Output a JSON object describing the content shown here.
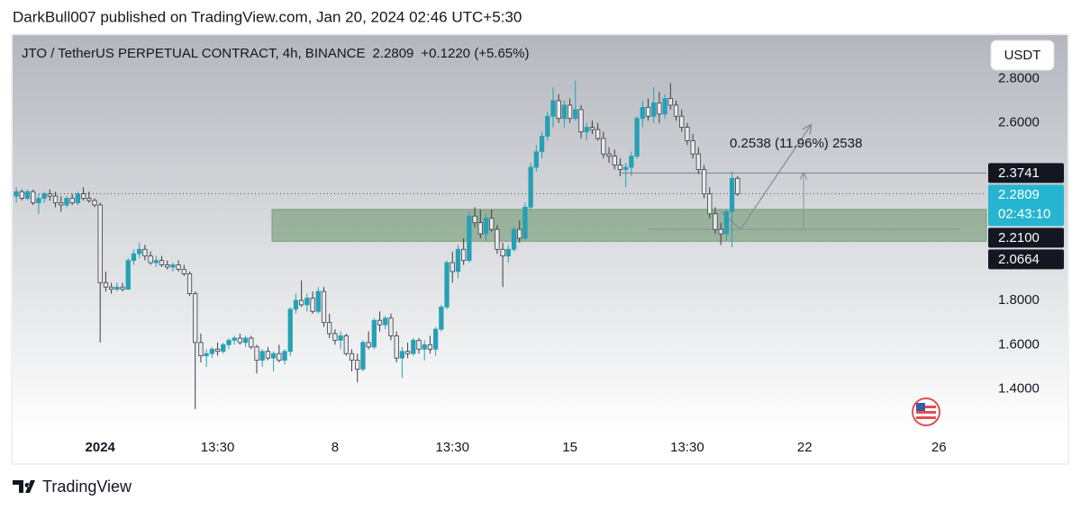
{
  "header": {
    "publisher": "DarkBull007 published on TradingView.com, Jan 20, 2024 02:46 UTC+5:30"
  },
  "footer": {
    "brand": "TradingView"
  },
  "chart_data": {
    "type": "candlestick",
    "title": "JTO / TetherUS PERPETUAL CONTRACT, 4h, BINANCE",
    "last": 2.2809,
    "change_label": "+0.1220 (+5.65%)",
    "countdown": "02:43:10",
    "currency": "USDT",
    "up_color": "#26a0b5",
    "down_color": "#e9eaee",
    "ylim": [
      1.2,
      3.0
    ],
    "yticks": [
      {
        "value": 1.4,
        "label": "1.4000"
      },
      {
        "value": 1.6,
        "label": "1.6000"
      },
      {
        "value": 1.8,
        "label": "1.8000"
      },
      {
        "value": 2.6,
        "label": "2.6000"
      },
      {
        "value": 2.8,
        "label": "2.8000"
      }
    ],
    "grid": false,
    "resistance": 2.3741,
    "zone": [
      {
        "value": 2.21,
        "label": "2.2100"
      },
      2.0664
    ],
    "measure": {
      "label": "0.2538 (11.96%) 2538",
      "from": 2.1203,
      "to": 2.3741,
      "projection": 2.59
    },
    "categories": [
      null,
      null,
      null,
      null,
      null,
      null,
      null,
      null,
      null,
      null,
      null,
      null,
      null,
      null,
      null,
      "2024",
      null,
      null,
      null,
      null,
      null,
      null,
      null,
      null,
      null,
      null,
      null,
      null,
      null,
      null,
      null,
      null,
      null,
      null,
      null,
      null,
      "13:30",
      null,
      null,
      null,
      null,
      null,
      null,
      null,
      null,
      null,
      null,
      null,
      null,
      null,
      null,
      null,
      null,
      null,
      null,
      null,
      null,
      "8",
      null,
      null,
      null,
      null,
      null,
      null,
      null,
      null,
      null,
      null,
      null,
      null,
      null,
      null,
      null,
      null,
      null,
      null,
      null,
      null,
      "13:30",
      null,
      null,
      null,
      null,
      null,
      null,
      null,
      null,
      null,
      null,
      null,
      null,
      null,
      null,
      null,
      null,
      null,
      null,
      null,
      null,
      "15",
      null,
      null,
      null,
      null,
      null,
      null,
      null,
      null,
      null,
      null,
      null,
      null,
      null,
      null,
      null,
      null,
      null,
      null,
      null,
      null,
      "13:30",
      null,
      null,
      null,
      null,
      null,
      null,
      null,
      null,
      null,
      null,
      null,
      null,
      null,
      null,
      null,
      null,
      null,
      null,
      null,
      null,
      "22",
      null,
      null,
      null,
      null,
      null,
      null,
      null,
      null,
      null,
      null,
      null,
      null,
      null,
      null,
      null,
      null,
      null,
      null,
      null,
      null,
      null,
      null,
      null,
      "26",
      null,
      null,
      null,
      null,
      null,
      null,
      null,
      null
    ],
    "ohlc": [
      [
        2.27,
        2.31,
        2.24,
        2.29
      ],
      [
        2.29,
        2.3,
        2.25,
        2.26
      ],
      [
        2.26,
        2.3,
        2.25,
        2.29
      ],
      [
        2.29,
        2.3,
        2.23,
        2.24
      ],
      [
        2.24,
        2.28,
        2.19,
        2.26
      ],
      [
        2.26,
        2.29,
        2.24,
        2.28
      ],
      [
        2.28,
        2.3,
        2.25,
        2.27
      ],
      [
        2.27,
        2.29,
        2.22,
        2.24
      ],
      [
        2.24,
        2.27,
        2.2,
        2.23
      ],
      [
        2.23,
        2.27,
        2.22,
        2.26
      ],
      [
        2.26,
        2.28,
        2.23,
        2.24
      ],
      [
        2.24,
        2.29,
        2.23,
        2.28
      ],
      [
        2.28,
        2.31,
        2.25,
        2.26
      ],
      [
        2.26,
        2.29,
        2.24,
        2.25
      ],
      [
        2.25,
        2.26,
        2.22,
        2.23
      ],
      [
        2.23,
        2.24,
        1.61,
        1.88
      ],
      [
        1.88,
        1.93,
        1.84,
        1.86
      ],
      [
        1.86,
        1.88,
        1.83,
        1.85
      ],
      [
        1.85,
        1.88,
        1.84,
        1.86
      ],
      [
        1.86,
        1.88,
        1.84,
        1.85
      ],
      [
        1.85,
        1.99,
        1.85,
        1.98
      ],
      [
        1.98,
        2.03,
        1.96,
        2.01
      ],
      [
        2.01,
        2.06,
        1.99,
        2.03
      ],
      [
        2.03,
        2.05,
        1.98,
        2.0
      ],
      [
        2.0,
        2.02,
        1.96,
        1.97
      ],
      [
        1.97,
        2.0,
        1.95,
        1.98
      ],
      [
        1.98,
        2.0,
        1.95,
        1.96
      ],
      [
        1.96,
        1.98,
        1.94,
        1.95
      ],
      [
        1.95,
        1.97,
        1.93,
        1.96
      ],
      [
        1.96,
        1.98,
        1.93,
        1.94
      ],
      [
        1.94,
        1.96,
        1.91,
        1.92
      ],
      [
        1.92,
        1.93,
        1.82,
        1.83
      ],
      [
        1.83,
        1.84,
        1.31,
        1.61
      ],
      [
        1.61,
        1.65,
        1.52,
        1.55
      ],
      [
        1.55,
        1.58,
        1.5,
        1.56
      ],
      [
        1.56,
        1.59,
        1.54,
        1.58
      ],
      [
        1.58,
        1.61,
        1.55,
        1.57
      ],
      [
        1.57,
        1.61,
        1.56,
        1.6
      ],
      [
        1.6,
        1.63,
        1.58,
        1.62
      ],
      [
        1.62,
        1.64,
        1.6,
        1.63
      ],
      [
        1.63,
        1.65,
        1.6,
        1.61
      ],
      [
        1.61,
        1.64,
        1.59,
        1.63
      ],
      [
        1.63,
        1.64,
        1.58,
        1.59
      ],
      [
        1.59,
        1.6,
        1.47,
        1.53
      ],
      [
        1.53,
        1.58,
        1.5,
        1.57
      ],
      [
        1.57,
        1.59,
        1.53,
        1.54
      ],
      [
        1.54,
        1.57,
        1.48,
        1.56
      ],
      [
        1.56,
        1.6,
        1.52,
        1.53
      ],
      [
        1.53,
        1.58,
        1.51,
        1.57
      ],
      [
        1.57,
        1.77,
        1.55,
        1.76
      ],
      [
        1.76,
        1.83,
        1.74,
        1.8
      ],
      [
        1.8,
        1.89,
        1.77,
        1.78
      ],
      [
        1.78,
        1.83,
        1.75,
        1.81
      ],
      [
        1.81,
        1.84,
        1.74,
        1.75
      ],
      [
        1.75,
        1.86,
        1.74,
        1.84
      ],
      [
        1.84,
        1.86,
        1.68,
        1.7
      ],
      [
        1.7,
        1.74,
        1.63,
        1.65
      ],
      [
        1.65,
        1.67,
        1.6,
        1.62
      ],
      [
        1.62,
        1.66,
        1.58,
        1.64
      ],
      [
        1.64,
        1.65,
        1.55,
        1.56
      ],
      [
        1.56,
        1.58,
        1.48,
        1.53
      ],
      [
        1.53,
        1.56,
        1.43,
        1.49
      ],
      [
        1.49,
        1.62,
        1.48,
        1.61
      ],
      [
        1.61,
        1.66,
        1.58,
        1.59
      ],
      [
        1.59,
        1.72,
        1.58,
        1.71
      ],
      [
        1.71,
        1.75,
        1.66,
        1.69
      ],
      [
        1.69,
        1.73,
        1.67,
        1.72
      ],
      [
        1.72,
        1.74,
        1.62,
        1.64
      ],
      [
        1.64,
        1.66,
        1.52,
        1.54
      ],
      [
        1.54,
        1.59,
        1.45,
        1.57
      ],
      [
        1.57,
        1.61,
        1.54,
        1.56
      ],
      [
        1.56,
        1.63,
        1.55,
        1.62
      ],
      [
        1.62,
        1.63,
        1.56,
        1.58
      ],
      [
        1.58,
        1.62,
        1.53,
        1.6
      ],
      [
        1.6,
        1.64,
        1.56,
        1.58
      ],
      [
        1.58,
        1.68,
        1.55,
        1.67
      ],
      [
        1.67,
        1.78,
        1.66,
        1.77
      ],
      [
        1.77,
        1.98,
        1.76,
        1.97
      ],
      [
        1.97,
        2.02,
        1.88,
        1.93
      ],
      [
        1.93,
        2.05,
        1.9,
        2.03
      ],
      [
        2.03,
        2.08,
        1.96,
        1.98
      ],
      [
        1.98,
        2.2,
        1.97,
        2.18
      ],
      [
        2.18,
        2.22,
        2.13,
        2.15
      ],
      [
        2.15,
        2.21,
        2.08,
        2.1
      ],
      [
        2.1,
        2.19,
        2.07,
        2.17
      ],
      [
        2.17,
        2.21,
        2.11,
        2.12
      ],
      [
        2.12,
        2.14,
        2.01,
        2.03
      ],
      [
        2.03,
        2.06,
        1.86,
        2.0
      ],
      [
        2.0,
        2.05,
        1.97,
        2.03
      ],
      [
        2.03,
        2.13,
        2.02,
        2.12
      ],
      [
        2.12,
        2.16,
        2.06,
        2.08
      ],
      [
        2.08,
        2.24,
        2.07,
        2.22
      ],
      [
        2.22,
        2.42,
        2.21,
        2.4
      ],
      [
        2.4,
        2.5,
        2.38,
        2.47
      ],
      [
        2.47,
        2.56,
        2.44,
        2.54
      ],
      [
        2.54,
        2.65,
        2.52,
        2.63
      ],
      [
        2.63,
        2.76,
        2.58,
        2.7
      ],
      [
        2.7,
        2.73,
        2.6,
        2.62
      ],
      [
        2.62,
        2.7,
        2.58,
        2.68
      ],
      [
        2.68,
        2.71,
        2.6,
        2.62
      ],
      [
        2.62,
        2.79,
        2.61,
        2.66
      ],
      [
        2.66,
        2.68,
        2.53,
        2.56
      ],
      [
        2.56,
        2.6,
        2.52,
        2.58
      ],
      [
        2.58,
        2.61,
        2.55,
        2.57
      ],
      [
        2.57,
        2.6,
        2.52,
        2.53
      ],
      [
        2.53,
        2.56,
        2.44,
        2.46
      ],
      [
        2.46,
        2.49,
        2.42,
        2.45
      ],
      [
        2.45,
        2.48,
        2.39,
        2.41
      ],
      [
        2.41,
        2.44,
        2.36,
        2.39
      ],
      [
        2.39,
        2.42,
        2.31,
        2.4
      ],
      [
        2.4,
        2.47,
        2.36,
        2.45
      ],
      [
        2.45,
        2.63,
        2.44,
        2.62
      ],
      [
        2.62,
        2.7,
        2.58,
        2.67
      ],
      [
        2.67,
        2.71,
        2.61,
        2.63
      ],
      [
        2.63,
        2.76,
        2.6,
        2.69
      ],
      [
        2.69,
        2.74,
        2.6,
        2.64
      ],
      [
        2.64,
        2.73,
        2.62,
        2.71
      ],
      [
        2.71,
        2.78,
        2.66,
        2.68
      ],
      [
        2.68,
        2.7,
        2.61,
        2.63
      ],
      [
        2.63,
        2.66,
        2.56,
        2.58
      ],
      [
        2.58,
        2.6,
        2.5,
        2.52
      ],
      [
        2.52,
        2.55,
        2.44,
        2.46
      ],
      [
        2.46,
        2.49,
        2.37,
        2.39
      ],
      [
        2.39,
        2.41,
        2.26,
        2.28
      ],
      [
        2.28,
        2.31,
        2.17,
        2.19
      ],
      [
        2.19,
        2.22,
        2.1,
        2.12
      ],
      [
        2.12,
        2.15,
        2.05,
        2.1
      ],
      [
        2.1,
        2.21,
        2.07,
        2.2
      ],
      [
        2.2,
        2.38,
        2.04,
        2.35
      ],
      [
        2.35,
        2.36,
        2.27,
        2.2809
      ],
      null,
      null,
      null,
      null,
      null,
      null,
      null,
      null,
      null,
      null,
      null,
      null,
      null,
      null,
      null,
      null,
      null,
      null,
      null,
      null,
      null,
      null,
      null,
      null,
      null,
      null,
      null,
      null,
      null,
      null,
      null,
      null,
      null,
      null,
      null,
      null,
      null,
      null,
      null,
      null,
      null,
      null,
      null,
      null
    ]
  }
}
